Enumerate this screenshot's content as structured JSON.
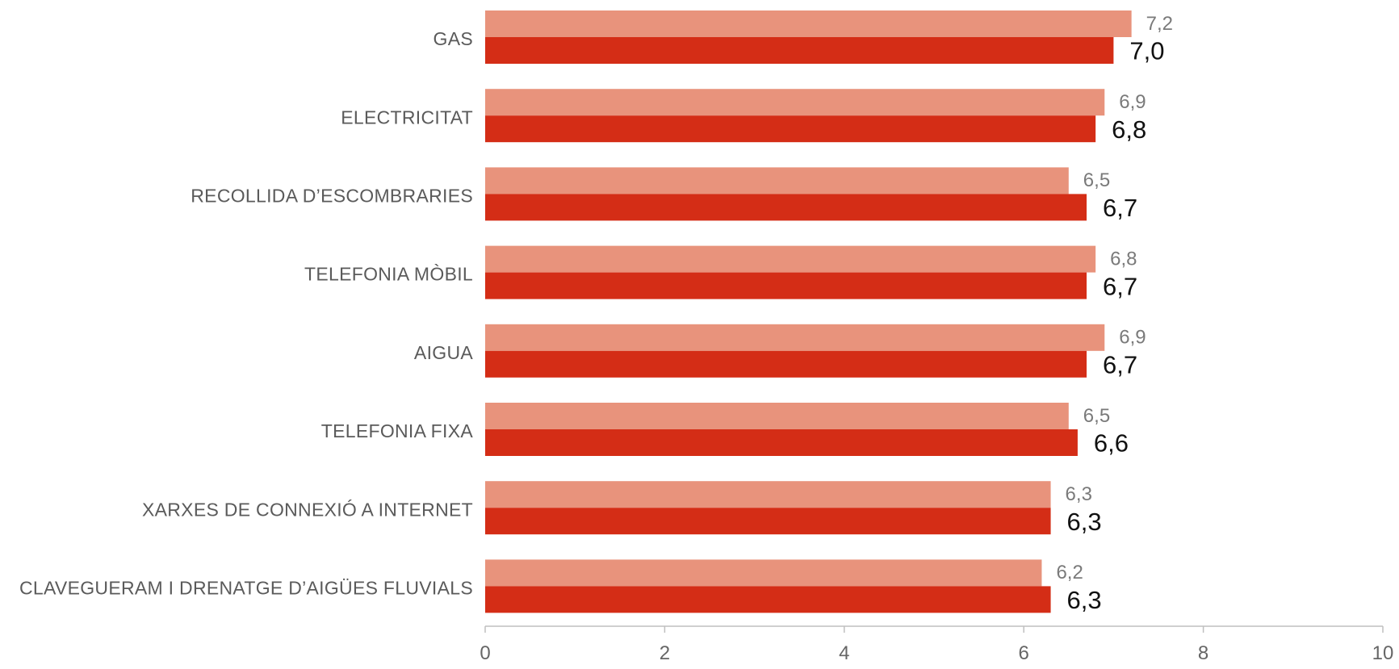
{
  "chart_data": {
    "type": "bar",
    "orientation": "horizontal",
    "title": "",
    "xlabel": "",
    "ylabel": "",
    "xlim": [
      0,
      10
    ],
    "x_ticks": [
      "0",
      "2",
      "4",
      "6",
      "8",
      "10"
    ],
    "categories": [
      "GAS",
      "ELECTRICITAT",
      "RECOLLIDA D’ESCOMBRARIES",
      "TELEFONIA MÒBIL",
      "AIGUA",
      "TELEFONIA FIXA",
      "XARXES DE CONNEXIÓ A INTERNET",
      "CLAVEGUERAM I DRENATGE D’AIGÜES FLUVIALS"
    ],
    "series": [
      {
        "color": "#e8937c",
        "values": [
          7.2,
          6.9,
          6.5,
          6.8,
          6.9,
          6.5,
          6.3,
          6.2
        ],
        "labels": [
          "7,2",
          "6,9",
          "6,5",
          "6,8",
          "6,9",
          "6,5",
          "6,3",
          "6,2"
        ]
      },
      {
        "color": "#d42d16",
        "values": [
          7.0,
          6.8,
          6.7,
          6.7,
          6.7,
          6.6,
          6.3,
          6.3
        ],
        "labels": [
          "7,0",
          "6,8",
          "6,7",
          "6,7",
          "6,7",
          "6,6",
          "6,3",
          "6,3"
        ]
      }
    ],
    "grid": false,
    "legend": "none"
  }
}
